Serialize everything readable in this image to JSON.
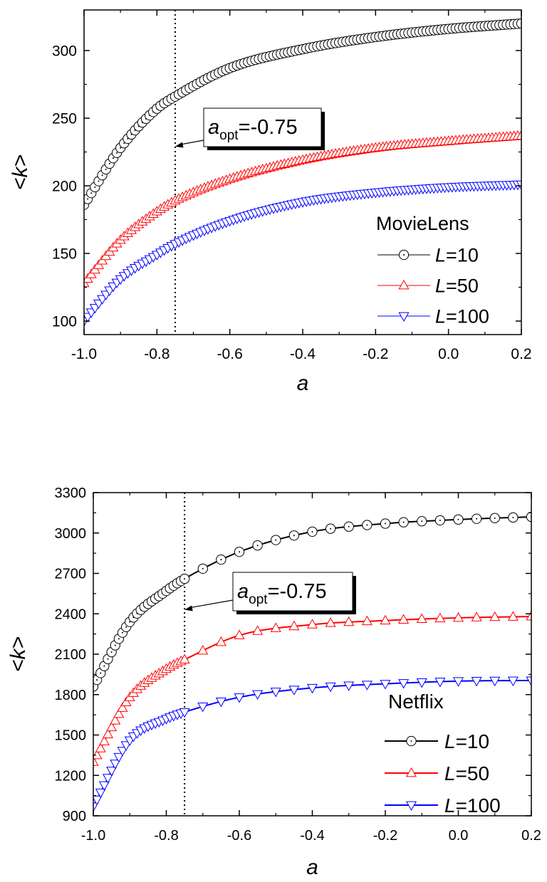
{
  "chart_data": [
    {
      "type": "line",
      "legend_title": "MovieLens",
      "legend_position": "bottom-right",
      "xlabel": "a",
      "ylabel": "<k>",
      "xlim": [
        -1.0,
        0.2
      ],
      "ylim": [
        90,
        330
      ],
      "xticks": [
        "-1.0",
        "-0.8",
        "-0.6",
        "-0.4",
        "-0.2",
        "0.0",
        "0.2"
      ],
      "yticks": [
        "100",
        "150",
        "200",
        "250",
        "300"
      ],
      "marker_spacing": 0.01,
      "annotation": {
        "prefix": "a",
        "sub": "opt",
        "text": "=-0.75",
        "x": -0.75,
        "arrow_to_y": 229
      },
      "vline": {
        "x": -0.75,
        "style": "dotted"
      },
      "series": [
        {
          "name_prefix": "L",
          "name_value": "=10",
          "name": "L=10",
          "color": "#000000",
          "marker": "circle",
          "x": [
            -1.0,
            -0.9,
            -0.8,
            -0.75,
            -0.6,
            -0.4,
            -0.2,
            0.0,
            0.2
          ],
          "y": [
            186,
            228,
            257,
            266,
            287,
            301,
            310,
            316,
            320
          ]
        },
        {
          "name_prefix": "L",
          "name_value": "=50",
          "name": "L=50",
          "color": "#ff0000",
          "marker": "triangle-up",
          "x": [
            -1.0,
            -0.9,
            -0.8,
            -0.75,
            -0.6,
            -0.4,
            -0.2,
            0.0,
            0.2
          ],
          "y": [
            128,
            160,
            181,
            189,
            205,
            219,
            228,
            233,
            237
          ]
        },
        {
          "name_prefix": "L",
          "name_value": "=100",
          "name": "L=100",
          "color": "#0000ff",
          "marker": "triangle-down",
          "x": [
            -1.0,
            -0.9,
            -0.8,
            -0.75,
            -0.6,
            -0.4,
            -0.2,
            0.0,
            0.2
          ],
          "y": [
            100,
            131,
            149,
            157,
            174,
            188,
            195,
            199,
            201
          ]
        }
      ]
    },
    {
      "type": "line",
      "legend_title": "Netflix",
      "legend_position": "bottom-right",
      "xlabel": "a",
      "ylabel": "<k>",
      "xlim": [
        -1.0,
        0.2
      ],
      "ylim": [
        900,
        3300
      ],
      "xticks": [
        "-1.0",
        "-0.8",
        "-0.6",
        "-0.4",
        "-0.2",
        "0.0",
        "0.2"
      ],
      "yticks": [
        "900",
        "1200",
        "1500",
        "1800",
        "2100",
        "2400",
        "2700",
        "3000",
        "3300"
      ],
      "marker_spacing": 0.05,
      "dense_markers": {
        "from": -1.0,
        "to": -0.75,
        "step": 0.01
      },
      "annotation": {
        "prefix": "a",
        "sub": "opt",
        "text": "=-0.75",
        "x": -0.75,
        "arrow_to_y": 2430
      },
      "vline": {
        "x": -0.75,
        "style": "dotted"
      },
      "series": [
        {
          "name_prefix": "L",
          "name_value": "=10",
          "name": "L=10",
          "color": "#000000",
          "marker": "circle",
          "x": [
            -1.0,
            -0.9,
            -0.8,
            -0.75,
            -0.6,
            -0.4,
            -0.2,
            0.0,
            0.2
          ],
          "y": [
            1860,
            2340,
            2570,
            2660,
            2860,
            3010,
            3070,
            3100,
            3120
          ]
        },
        {
          "name_prefix": "L",
          "name_value": "=50",
          "name": "L=50",
          "color": "#ff0000",
          "marker": "triangle-up",
          "x": [
            -1.0,
            -0.9,
            -0.8,
            -0.75,
            -0.6,
            -0.4,
            -0.2,
            0.0,
            0.2
          ],
          "y": [
            1300,
            1780,
            1990,
            2060,
            2240,
            2320,
            2350,
            2370,
            2380
          ]
        },
        {
          "name_prefix": "L",
          "name_value": "=100",
          "name": "L=100",
          "color": "#0000ff",
          "marker": "triangle-down",
          "x": [
            -1.0,
            -0.9,
            -0.8,
            -0.75,
            -0.6,
            -0.4,
            -0.2,
            0.0,
            0.2
          ],
          "y": [
            970,
            1460,
            1620,
            1670,
            1780,
            1850,
            1880,
            1900,
            1905
          ]
        }
      ]
    }
  ]
}
